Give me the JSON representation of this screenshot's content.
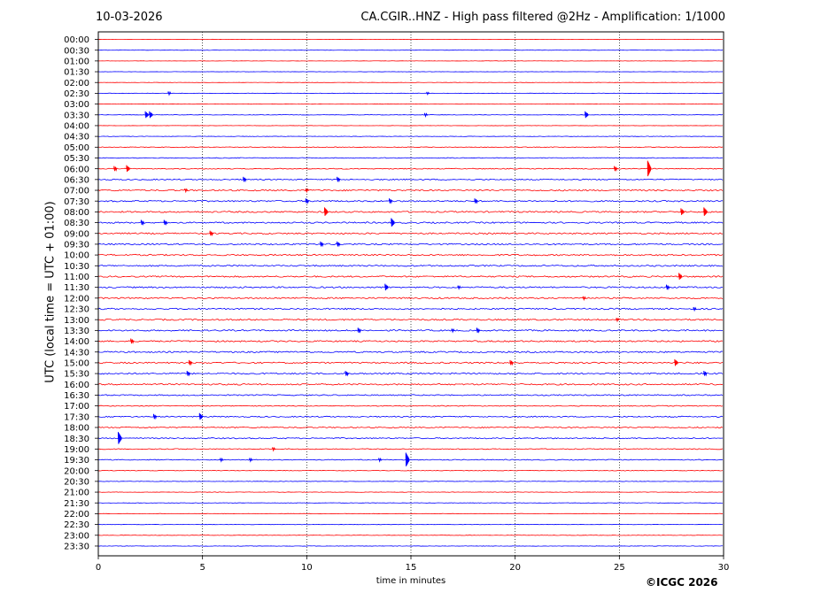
{
  "header": {
    "date": "10-03-2026",
    "title": "CA.CGIR..HNZ - High pass filtered @2Hz - Amplification: 1/1000"
  },
  "footer": {
    "copyright": "©ICGC 2026"
  },
  "chart_data": {
    "type": "line",
    "title": "CA.CGIR..HNZ - High pass filtered @2Hz - Amplification: 1/1000",
    "xlabel": "time in minutes",
    "ylabel": "UTC (local time = UTC + 01:00)",
    "xlim": [
      0,
      30
    ],
    "x_ticks": [
      0,
      5,
      10,
      15,
      20,
      25,
      30
    ],
    "x_tick_labels": [
      "0",
      "5",
      "10",
      "15",
      "20",
      "25",
      "30"
    ],
    "grid": "vertical dotted at 5-minute intervals",
    "rows": [
      "00:00",
      "00:30",
      "01:00",
      "01:30",
      "02:00",
      "02:30",
      "03:00",
      "03:30",
      "04:00",
      "04:30",
      "05:00",
      "05:30",
      "06:00",
      "06:30",
      "07:00",
      "07:30",
      "08:00",
      "08:30",
      "09:00",
      "09:30",
      "10:00",
      "10:30",
      "11:00",
      "11:30",
      "12:00",
      "12:30",
      "13:00",
      "13:30",
      "14:00",
      "14:30",
      "15:00",
      "15:30",
      "16:00",
      "16:30",
      "17:00",
      "17:30",
      "18:00",
      "18:30",
      "19:00",
      "19:30",
      "20:00",
      "20:30",
      "21:00",
      "21:30",
      "22:00",
      "22:30",
      "23:00",
      "23:30"
    ],
    "row_colors": [
      "#ff0000",
      "#0000ff"
    ],
    "noise_level": [
      0.2,
      0.2,
      0.2,
      0.2,
      0.2,
      0.3,
      0.2,
      0.3,
      0.2,
      0.3,
      0.5,
      0.5,
      0.6,
      0.8,
      1,
      1,
      1,
      1,
      1,
      1,
      1,
      1,
      1,
      1,
      1,
      1,
      1,
      1,
      1,
      1,
      1,
      1,
      1,
      0.8,
      0.6,
      0.8,
      0.8,
      0.8,
      0.6,
      0.6,
      0.4,
      0.3,
      0.3,
      0.3,
      0.3,
      0.3,
      0.3,
      0.3
    ],
    "events": [
      {
        "row": "02:30",
        "minute": 3.4,
        "amp": 2
      },
      {
        "row": "02:30",
        "minute": 15.8,
        "amp": 1.5
      },
      {
        "row": "03:30",
        "minute": 2.3,
        "amp": 4
      },
      {
        "row": "03:30",
        "minute": 2.5,
        "amp": 4
      },
      {
        "row": "03:30",
        "minute": 15.7,
        "amp": 2
      },
      {
        "row": "03:30",
        "minute": 23.4,
        "amp": 4
      },
      {
        "row": "06:00",
        "minute": 0.8,
        "amp": 3
      },
      {
        "row": "06:00",
        "minute": 1.4,
        "amp": 4
      },
      {
        "row": "06:00",
        "minute": 24.8,
        "amp": 3
      },
      {
        "row": "06:00",
        "minute": 26.4,
        "amp": 9
      },
      {
        "row": "06:30",
        "minute": 7.0,
        "amp": 3
      },
      {
        "row": "06:30",
        "minute": 11.5,
        "amp": 3
      },
      {
        "row": "07:00",
        "minute": 4.2,
        "amp": 2
      },
      {
        "row": "07:00",
        "minute": 10.0,
        "amp": 2
      },
      {
        "row": "07:30",
        "minute": 10.0,
        "amp": 3
      },
      {
        "row": "07:30",
        "minute": 14.0,
        "amp": 3
      },
      {
        "row": "07:30",
        "minute": 18.1,
        "amp": 3
      },
      {
        "row": "08:00",
        "minute": 10.9,
        "amp": 5
      },
      {
        "row": "08:00",
        "minute": 28.0,
        "amp": 4
      },
      {
        "row": "08:00",
        "minute": 29.1,
        "amp": 5
      },
      {
        "row": "08:30",
        "minute": 2.1,
        "amp": 3
      },
      {
        "row": "08:30",
        "minute": 3.2,
        "amp": 3
      },
      {
        "row": "08:30",
        "minute": 14.1,
        "amp": 5
      },
      {
        "row": "09:00",
        "minute": 5.4,
        "amp": 3
      },
      {
        "row": "09:30",
        "minute": 10.7,
        "amp": 3
      },
      {
        "row": "09:30",
        "minute": 11.5,
        "amp": 3
      },
      {
        "row": "11:00",
        "minute": 27.9,
        "amp": 4
      },
      {
        "row": "11:30",
        "minute": 13.8,
        "amp": 4
      },
      {
        "row": "11:30",
        "minute": 17.3,
        "amp": 2
      },
      {
        "row": "11:30",
        "minute": 27.3,
        "amp": 3
      },
      {
        "row": "12:00",
        "minute": 23.3,
        "amp": 2
      },
      {
        "row": "12:30",
        "minute": 28.6,
        "amp": 2
      },
      {
        "row": "13:00",
        "minute": 24.9,
        "amp": 2
      },
      {
        "row": "13:30",
        "minute": 12.5,
        "amp": 3
      },
      {
        "row": "13:30",
        "minute": 17.0,
        "amp": 2
      },
      {
        "row": "13:30",
        "minute": 18.2,
        "amp": 3
      },
      {
        "row": "14:00",
        "minute": 1.6,
        "amp": 3
      },
      {
        "row": "15:00",
        "minute": 4.4,
        "amp": 3
      },
      {
        "row": "15:00",
        "minute": 19.8,
        "amp": 3
      },
      {
        "row": "15:00",
        "minute": 27.7,
        "amp": 4
      },
      {
        "row": "15:30",
        "minute": 4.3,
        "amp": 3
      },
      {
        "row": "15:30",
        "minute": 11.9,
        "amp": 3
      },
      {
        "row": "15:30",
        "minute": 29.1,
        "amp": 3
      },
      {
        "row": "17:30",
        "minute": 2.7,
        "amp": 3
      },
      {
        "row": "17:30",
        "minute": 4.9,
        "amp": 4
      },
      {
        "row": "18:30",
        "minute": 1.0,
        "amp": 7
      },
      {
        "row": "19:00",
        "minute": 8.4,
        "amp": 2
      },
      {
        "row": "19:30",
        "minute": 5.9,
        "amp": 2
      },
      {
        "row": "19:30",
        "minute": 7.3,
        "amp": 2
      },
      {
        "row": "19:30",
        "minute": 13.5,
        "amp": 2
      },
      {
        "row": "19:30",
        "minute": 14.8,
        "amp": 8
      }
    ]
  }
}
